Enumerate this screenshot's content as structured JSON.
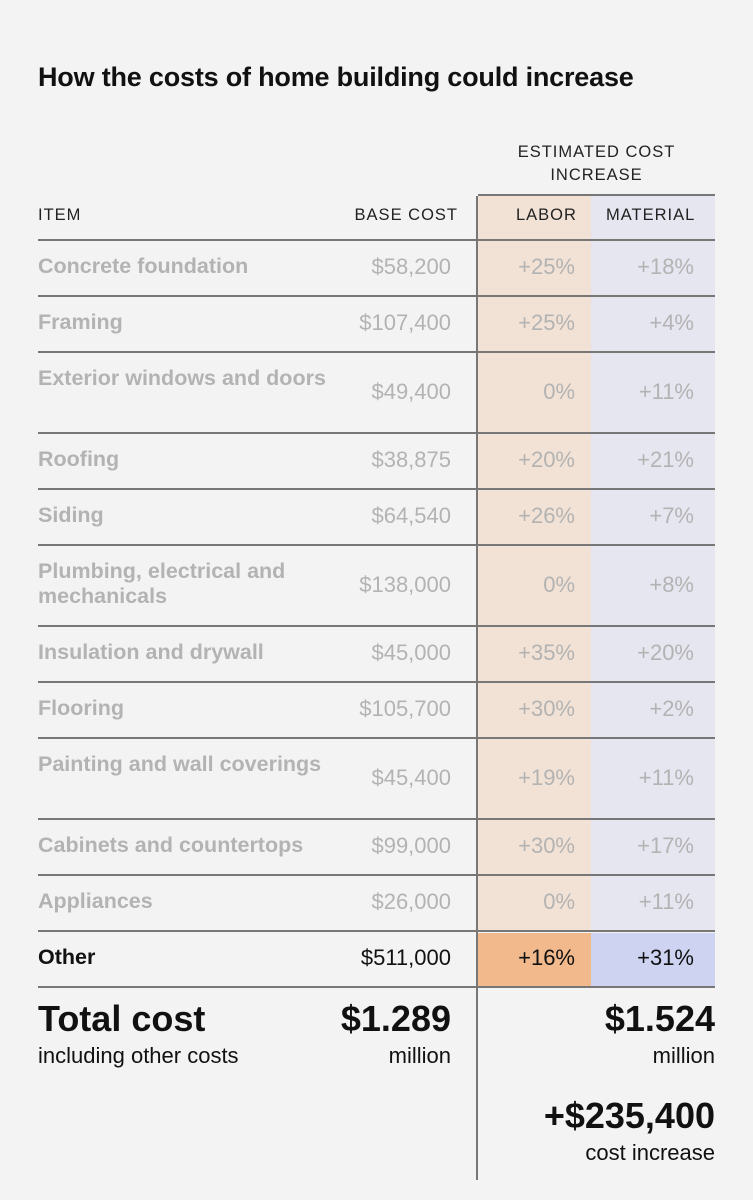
{
  "title": "How the costs of home building could increase",
  "headers": {
    "estimated": "ESTIMATED COST INCREASE",
    "item": "ITEM",
    "base_cost": "BASE COST",
    "labor": "LABOR",
    "material": "MATERIAL"
  },
  "colors": {
    "labor_bg": "#f2e2d5",
    "material_bg": "#e6e6f1",
    "labor_highlight": "#f1b98c",
    "material_highlight": "#cdd3f1"
  },
  "chart_data": {
    "type": "table",
    "title": "How the costs of home building could increase",
    "columns": [
      "ITEM",
      "BASE COST",
      "LABOR",
      "MATERIAL"
    ],
    "rows": [
      {
        "item": "Concrete foundation",
        "base": "$58,200",
        "labor": "+25%",
        "material": "+18%"
      },
      {
        "item": "Framing",
        "base": "$107,400",
        "labor": "+25%",
        "material": "+4%"
      },
      {
        "item": "Exterior windows and doors",
        "base": "$49,400",
        "labor": "0%",
        "material": "+11%"
      },
      {
        "item": "Roofing",
        "base": "$38,875",
        "labor": "+20%",
        "material": "+21%"
      },
      {
        "item": "Siding",
        "base": "$64,540",
        "labor": "+26%",
        "material": "+7%"
      },
      {
        "item": "Plumbing, electrical and mechanicals",
        "base": "$138,000",
        "labor": "0%",
        "material": "+8%"
      },
      {
        "item": "Insulation and drywall",
        "base": "$45,000",
        "labor": "+35%",
        "material": "+20%"
      },
      {
        "item": "Flooring",
        "base": "$105,700",
        "labor": "+30%",
        "material": "+2%"
      },
      {
        "item": "Painting and wall coverings",
        "base": "$45,400",
        "labor": "+19%",
        "material": "+11%"
      },
      {
        "item": "Cabinets and countertops",
        "base": "$99,000",
        "labor": "+30%",
        "material": "+17%"
      },
      {
        "item": "Appliances",
        "base": "$26,000",
        "labor": "0%",
        "material": "+11%"
      },
      {
        "item": "Other",
        "base": "$511,000",
        "labor": "+16%",
        "material": "+31%",
        "highlight": true
      }
    ]
  },
  "totals": {
    "label": "Total cost",
    "sublabel": "including other costs",
    "base_value": "$1.289",
    "base_unit": "million",
    "new_value": "$1.524",
    "new_unit": "million",
    "increase_value": "+$235,400",
    "increase_label": "cost increase"
  }
}
